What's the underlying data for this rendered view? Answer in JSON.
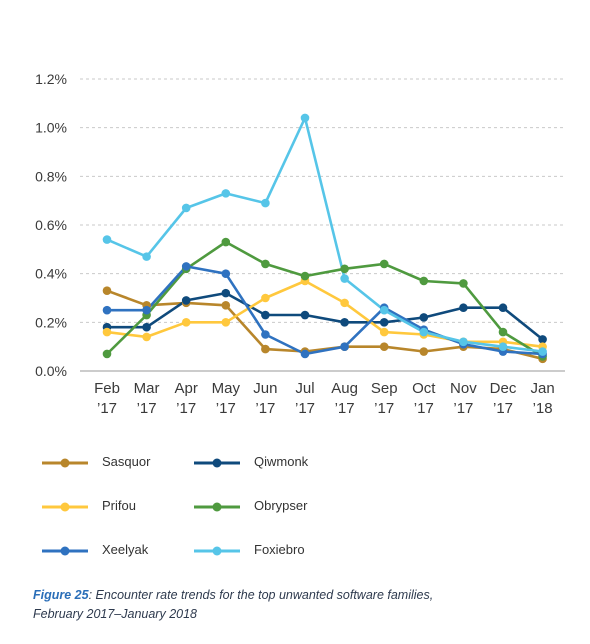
{
  "chart_data": {
    "type": "line",
    "categories": [
      [
        "Feb",
        "’17"
      ],
      [
        "Mar",
        "’17"
      ],
      [
        "Apr",
        "’17"
      ],
      [
        "May",
        "’17"
      ],
      [
        "Jun",
        "’17"
      ],
      [
        "Jul",
        "’17"
      ],
      [
        "Aug",
        "’17"
      ],
      [
        "Sep",
        "’17"
      ],
      [
        "Oct",
        "’17"
      ],
      [
        "Nov",
        "’17"
      ],
      [
        "Dec",
        "’17"
      ],
      [
        "Jan",
        "’18"
      ]
    ],
    "y_ticks": [
      "0.0%",
      "0.2%",
      "0.4%",
      "0.6%",
      "0.8%",
      "1.0%",
      "1.2%"
    ],
    "ylim": [
      0,
      1.2
    ],
    "grid": "horizontal-dashed",
    "series": [
      {
        "name": "Sasquor",
        "color": "#b8862b",
        "values": [
          0.33,
          0.27,
          0.28,
          0.27,
          0.09,
          0.08,
          0.1,
          0.1,
          0.08,
          0.1,
          0.09,
          0.05
        ]
      },
      {
        "name": "Qiwmonk",
        "color": "#0f4a7c",
        "values": [
          0.18,
          0.18,
          0.29,
          0.32,
          0.23,
          0.23,
          0.2,
          0.2,
          0.22,
          0.26,
          0.26,
          0.13
        ]
      },
      {
        "name": "Prifou",
        "color": "#ffc83d",
        "values": [
          0.16,
          0.14,
          0.2,
          0.2,
          0.3,
          0.37,
          0.28,
          0.16,
          0.15,
          0.12,
          0.12,
          0.1
        ]
      },
      {
        "name": "Obrypser",
        "color": "#4f9a3f",
        "values": [
          0.07,
          0.23,
          0.42,
          0.53,
          0.44,
          0.39,
          0.42,
          0.44,
          0.37,
          0.36,
          0.16,
          0.06
        ]
      },
      {
        "name": "Xeelyak",
        "color": "#2f72c0",
        "values": [
          0.25,
          0.25,
          0.43,
          0.4,
          0.15,
          0.07,
          0.1,
          0.26,
          0.17,
          0.11,
          0.08,
          0.07
        ]
      },
      {
        "name": "Foxiebro",
        "color": "#56c5e8",
        "values": [
          0.54,
          0.47,
          0.67,
          0.73,
          0.69,
          1.04,
          0.38,
          0.25,
          0.16,
          0.12,
          0.1,
          0.08
        ]
      }
    ]
  },
  "legend": {
    "items": [
      {
        "label": "Sasquor",
        "color": "#b8862b"
      },
      {
        "label": "Qiwmonk",
        "color": "#0f4a7c"
      },
      {
        "label": "Prifou",
        "color": "#ffc83d"
      },
      {
        "label": "Obrypser",
        "color": "#4f9a3f"
      },
      {
        "label": "Xeelyak",
        "color": "#2f72c0"
      },
      {
        "label": "Foxiebro",
        "color": "#56c5e8"
      }
    ]
  },
  "caption": {
    "figure_label": "Figure 25",
    "line1_rest": ": Encounter rate trends for the top unwanted software families,",
    "line2": "February 2017–January 2018"
  }
}
